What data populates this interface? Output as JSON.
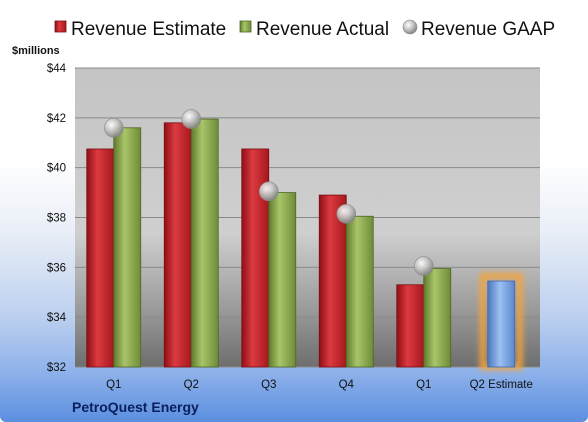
{
  "chart_data": {
    "type": "bar",
    "ylabel": "$millions",
    "ylim": [
      32,
      44
    ],
    "yticks": [
      "$32",
      "$34",
      "$36",
      "$38",
      "$40",
      "$42",
      "$44"
    ],
    "ytick_values": [
      32,
      34,
      36,
      38,
      40,
      42,
      44
    ],
    "categories": [
      "Q1",
      "Q2",
      "Q3",
      "Q4",
      "Q1",
      "Q2 Estimate"
    ],
    "series": [
      {
        "name": "Revenue Estimate",
        "kind": "bar",
        "color": "#cc2229",
        "values": [
          40.75,
          41.8,
          40.75,
          38.9,
          35.3,
          null
        ]
      },
      {
        "name": "Revenue Actual",
        "kind": "bar",
        "color": "#93b155",
        "values": [
          41.6,
          41.95,
          39.0,
          38.05,
          35.95,
          null
        ]
      },
      {
        "name": "Revenue GAAP",
        "kind": "marker",
        "color": "#b8b8b8",
        "values": [
          41.6,
          41.95,
          39.05,
          38.15,
          36.05,
          null
        ]
      }
    ],
    "forecast": {
      "category": "Q2 Estimate",
      "value": 35.45,
      "color": "#6f9de0",
      "glow": "#f5a43a"
    },
    "grid": true,
    "legend_position": "top",
    "company": "PetroQuest Energy"
  }
}
